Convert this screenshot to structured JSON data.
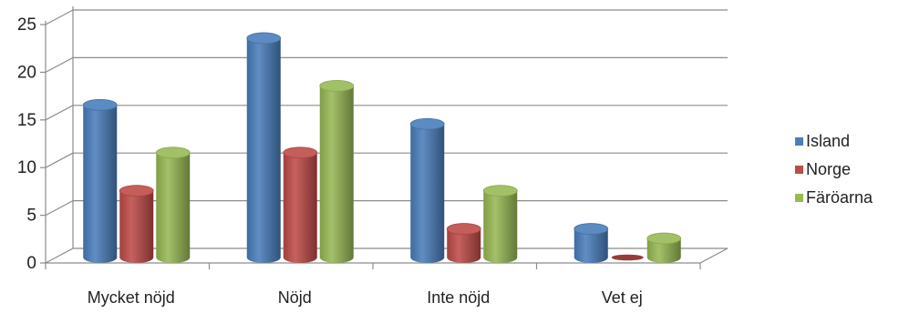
{
  "chart_data": {
    "type": "bar",
    "categories": [
      "Mycket nöjd",
      "Nöjd",
      "Inte nöjd",
      "Vet ej"
    ],
    "series": [
      {
        "name": "Island",
        "values": [
          16,
          23,
          14,
          3
        ],
        "color": "#4a7ebb"
      },
      {
        "name": "Norge",
        "values": [
          7,
          11,
          3,
          0
        ],
        "color": "#be4b48"
      },
      {
        "name": "Färöarna",
        "values": [
          11,
          18,
          7,
          2
        ],
        "color": "#98b954"
      }
    ],
    "yticks": [
      "0",
      "5",
      "10",
      "15",
      "20",
      "25"
    ],
    "ylim": [
      0,
      25
    ],
    "grid": true,
    "legend": "right",
    "style": "3d-cylinder"
  }
}
